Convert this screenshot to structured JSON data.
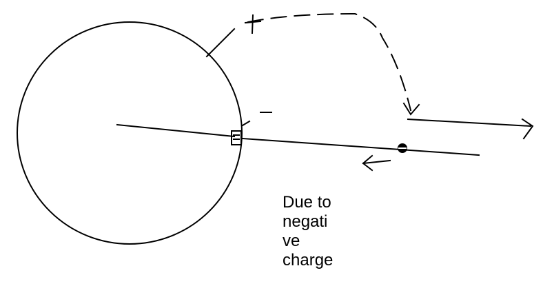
{
  "note": {
    "lines": [
      "Due to",
      "negati",
      "ve",
      "charge"
    ]
  },
  "signs": {
    "plus": "+",
    "minus": "−"
  }
}
